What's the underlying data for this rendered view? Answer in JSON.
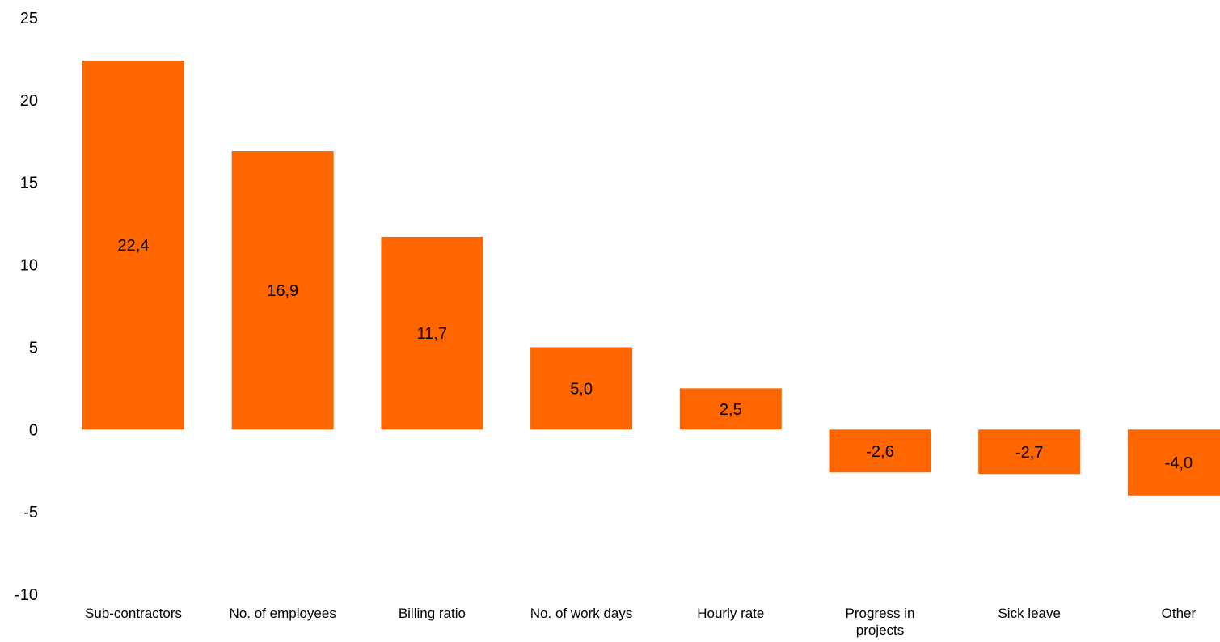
{
  "chart_data": {
    "type": "bar",
    "categories": [
      [
        "Sub-contractors"
      ],
      [
        "No. of employees"
      ],
      [
        "Billing ratio"
      ],
      [
        "No. of work days"
      ],
      [
        "Hourly rate"
      ],
      [
        "Progress in",
        "projects"
      ],
      [
        "Sick leave"
      ],
      [
        "Other"
      ]
    ],
    "values": [
      22.4,
      16.9,
      11.7,
      5.0,
      2.5,
      -2.6,
      -2.7,
      -4.0
    ],
    "data_labels": [
      "22,4",
      "16,9",
      "11,7",
      "5,0",
      "2,5",
      "-2,6",
      "-2,7",
      "-4,0"
    ],
    "y_ticks": [
      25,
      20,
      15,
      10,
      5,
      0,
      -5,
      -10
    ],
    "y_tick_labels": [
      "25",
      "20",
      "15",
      "10",
      "5",
      "0",
      "-5",
      "-10"
    ],
    "ylim": [
      -10,
      25
    ],
    "grid": false,
    "bar_color": "#ff6600"
  }
}
